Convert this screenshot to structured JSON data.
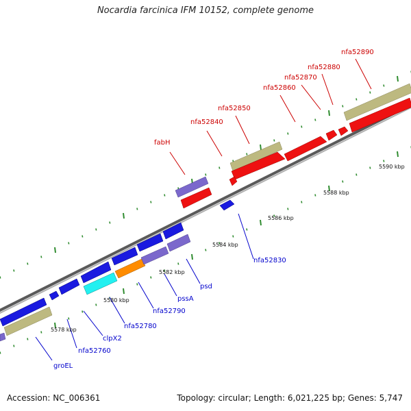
{
  "title": "Nocardia farcinica IFM 10152, complete genome",
  "footer": {
    "accession": "Accession: NC_006361",
    "info": "Topology: circular; Length: 6,021,225 bp; Genes: 5,747"
  },
  "scale_labels": [
    "5578 kbp",
    "5580 kbp",
    "5582 kbp",
    "5584 kbp",
    "5586 kbp",
    "5588 kbp",
    "5590 kbp"
  ],
  "forward_labels": [
    "fabH",
    "nfa52840",
    "nfa52850",
    "nfa52860",
    "nfa52870",
    "nfa52880",
    "nfa52890"
  ],
  "reverse_labels": [
    "groEL",
    "nfa52760",
    "clpX2",
    "nfa52780",
    "nfa52790",
    "pssA",
    "psd",
    "nfa52830"
  ],
  "colors": {
    "forward_label": "#cc0000",
    "reverse_label": "#0000cc",
    "backbone": "#8a8a8a",
    "tick": "#2e8b2e"
  }
}
